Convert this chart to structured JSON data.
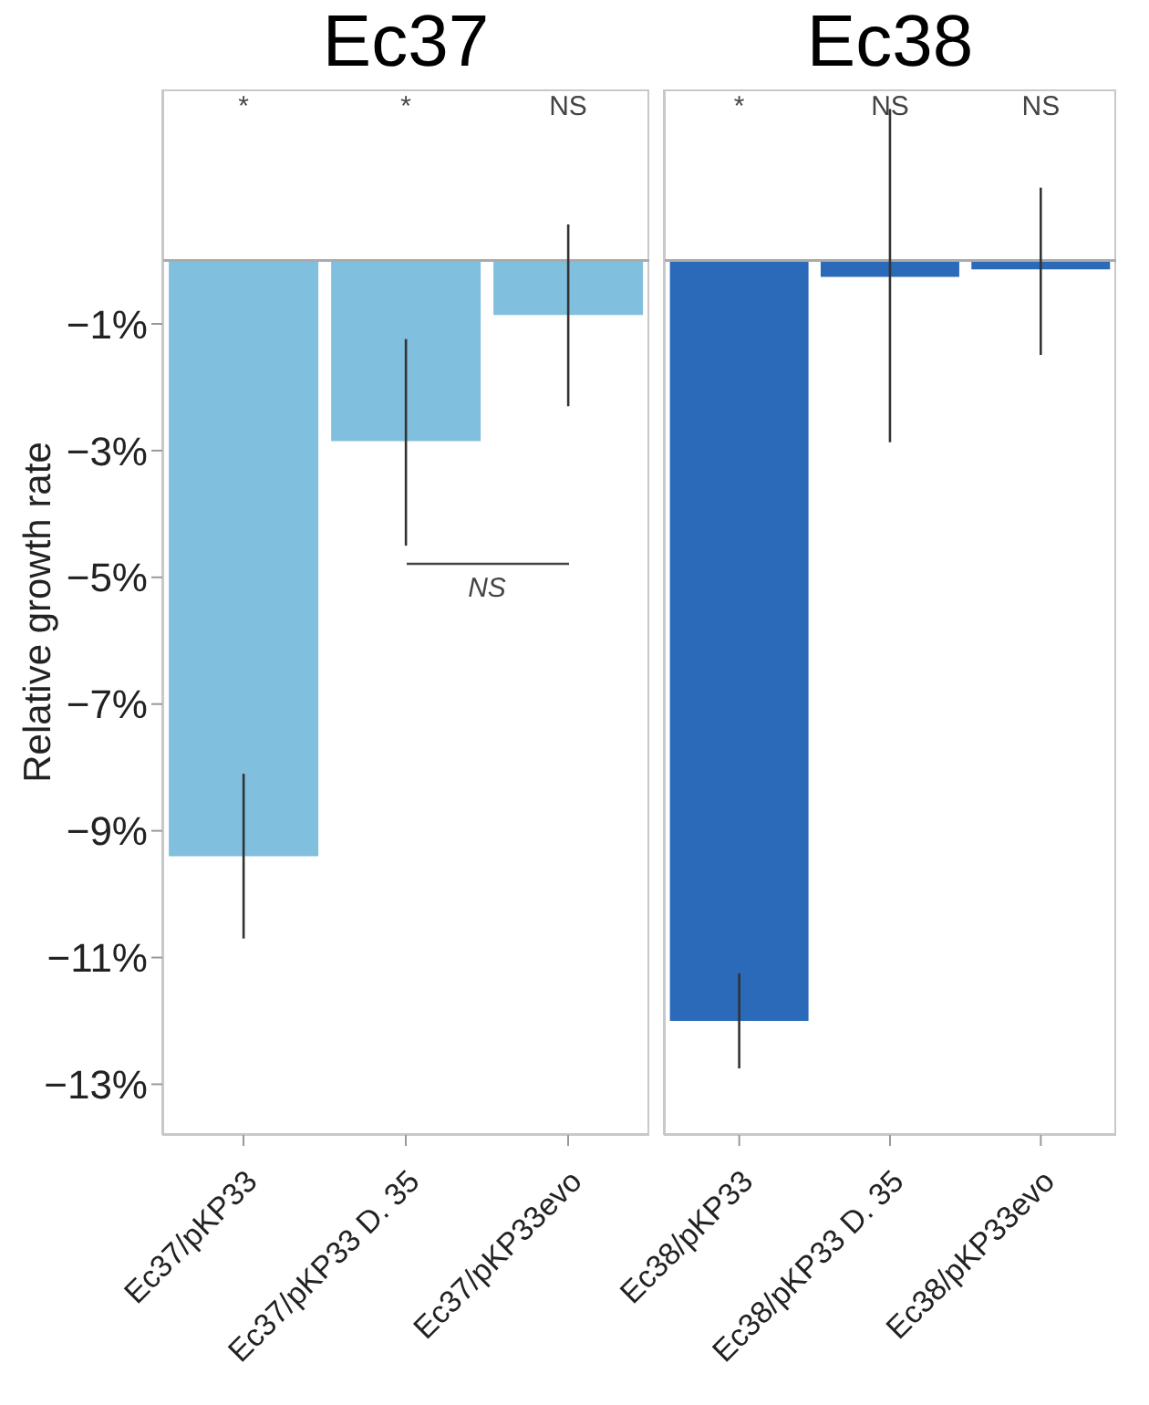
{
  "chart_data": [
    {
      "type": "bar",
      "title": "Ec37",
      "ylabel": "Relative growth rate",
      "categories": [
        "Ec37/pKP33",
        "Ec37/pKP33 D. 35",
        "Ec37/pKP33evo"
      ],
      "values": [
        -9.4,
        -2.85,
        -0.86
      ],
      "color": "#80bfde",
      "errors": [
        [
          -10.7,
          -8.1
        ],
        [
          -4.5,
          -1.24
        ],
        [
          -2.3,
          0.57
        ]
      ],
      "ylim": [
        -13.8,
        2.7
      ],
      "yticks": [
        {
          "value": -1,
          "label": "−1%"
        },
        {
          "value": -3,
          "label": "−3%"
        },
        {
          "value": -5,
          "label": "−5%"
        },
        {
          "value": -7,
          "label": "−7%"
        },
        {
          "value": -9,
          "label": "−9%"
        },
        {
          "value": -11,
          "label": "−11%"
        },
        {
          "value": -13,
          "label": "−13%"
        }
      ],
      "ref_lines": [
        {
          "axis": "y",
          "value": 0,
          "color": "#aaaaaa"
        }
      ],
      "annotations": [
        "*",
        "*",
        "NS",
        "NS"
      ],
      "grid": false
    },
    {
      "type": "bar",
      "title": "Ec38",
      "categories": [
        "Ec38/pKP33",
        "Ec38/pKP33 D. 35",
        "Ec38/pKP33evo"
      ],
      "values": [
        -12,
        -0.26,
        -0.14
      ],
      "color": "#2a6ab8",
      "errors": [
        [
          -12.75,
          -11.25
        ],
        [
          -2.87,
          2.39
        ],
        [
          -1.49,
          1.15
        ]
      ],
      "ylim": [
        -13.8,
        2.7
      ],
      "ref_lines": [
        {
          "axis": "y",
          "value": 0,
          "color": "#aaaaaa"
        }
      ],
      "annotations": [
        "*",
        "NS",
        "NS"
      ],
      "grid": false,
      "tick_labels": "x"
    }
  ]
}
